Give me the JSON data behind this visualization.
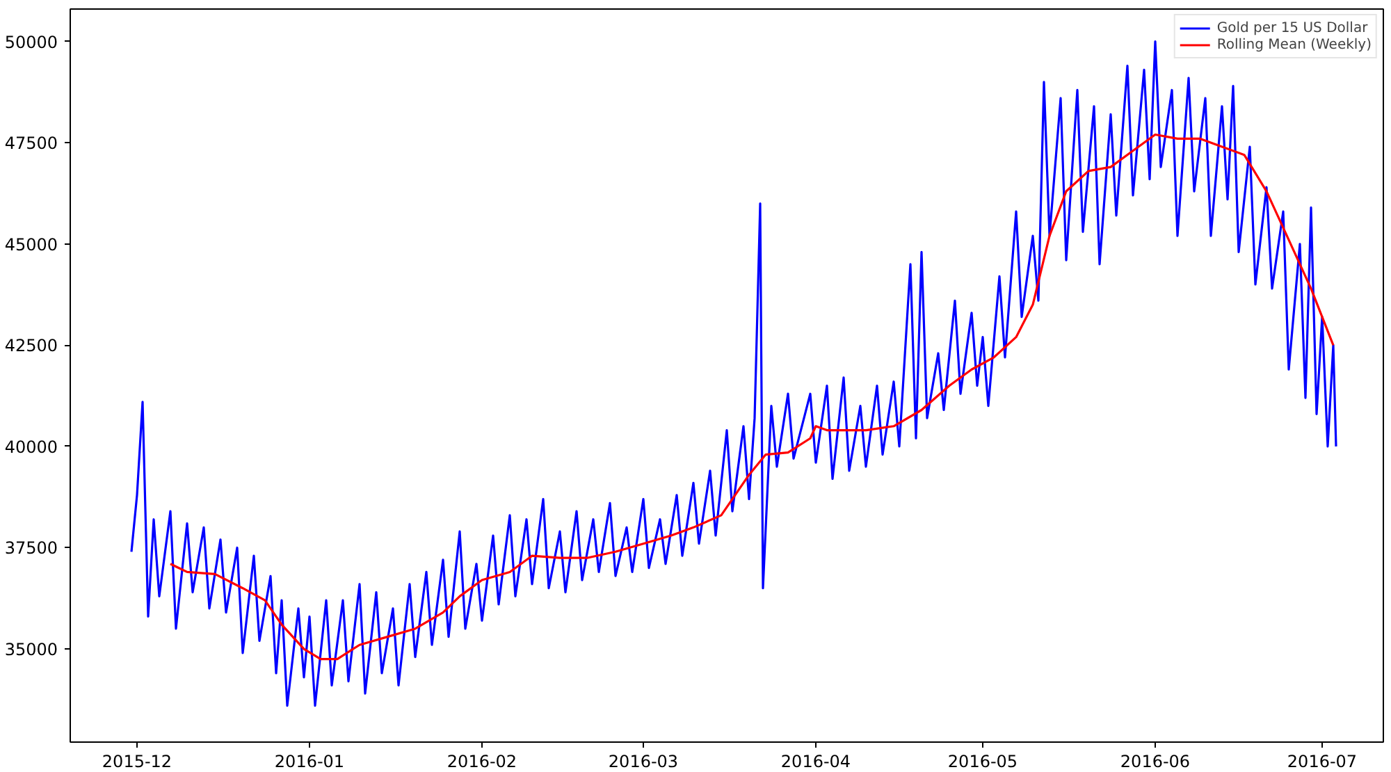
{
  "chart_data": {
    "type": "line",
    "legend": "top right",
    "grid": false,
    "line_style": "solid",
    "xlim": [
      "2015-11-19",
      "2016-07-12"
    ],
    "ylim": [
      32700,
      50800
    ],
    "xticks": [
      {
        "value": "2015-12-01",
        "label": "2015-12"
      },
      {
        "value": "2016-01-01",
        "label": "2016-01"
      },
      {
        "value": "2016-02-01",
        "label": "2016-02"
      },
      {
        "value": "2016-03-01",
        "label": "2016-03"
      },
      {
        "value": "2016-04-01",
        "label": "2016-04"
      },
      {
        "value": "2016-05-01",
        "label": "2016-05"
      },
      {
        "value": "2016-06-01",
        "label": "2016-06"
      },
      {
        "value": "2016-07-01",
        "label": "2016-07"
      }
    ],
    "yticks": [
      35000,
      37500,
      40000,
      42500,
      45000,
      47500,
      50000
    ],
    "series": [
      {
        "name": "Gold per 15 US Dollar",
        "color": "#0000ff",
        "x": [
          "2015-11-30",
          "2015-12-01",
          "2015-12-02",
          "2015-12-03",
          "2015-12-04",
          "2015-12-05",
          "2015-12-07",
          "2015-12-08",
          "2015-12-10",
          "2015-12-11",
          "2015-12-13",
          "2015-12-14",
          "2015-12-16",
          "2015-12-17",
          "2015-12-19",
          "2015-12-20",
          "2015-12-22",
          "2015-12-23",
          "2015-12-25",
          "2015-12-26",
          "2015-12-27",
          "2015-12-28",
          "2015-12-30",
          "2015-12-31",
          "2016-01-01",
          "2016-01-02",
          "2016-01-04",
          "2016-01-05",
          "2016-01-07",
          "2016-01-08",
          "2016-01-10",
          "2016-01-11",
          "2016-01-13",
          "2016-01-14",
          "2016-01-16",
          "2016-01-17",
          "2016-01-19",
          "2016-01-20",
          "2016-01-22",
          "2016-01-23",
          "2016-01-25",
          "2016-01-26",
          "2016-01-28",
          "2016-01-29",
          "2016-01-31",
          "2016-02-01",
          "2016-02-03",
          "2016-02-04",
          "2016-02-06",
          "2016-02-07",
          "2016-02-09",
          "2016-02-10",
          "2016-02-12",
          "2016-02-13",
          "2016-02-15",
          "2016-02-16",
          "2016-02-18",
          "2016-02-19",
          "2016-02-21",
          "2016-02-22",
          "2016-02-24",
          "2016-02-25",
          "2016-02-27",
          "2016-02-28",
          "2016-03-01",
          "2016-03-02",
          "2016-03-04",
          "2016-03-05",
          "2016-03-07",
          "2016-03-08",
          "2016-03-10",
          "2016-03-11",
          "2016-03-13",
          "2016-03-14",
          "2016-03-16",
          "2016-03-17",
          "2016-03-19",
          "2016-03-20",
          "2016-03-21",
          "2016-03-22",
          "2016-03-22T12:00",
          "2016-03-24",
          "2016-03-25",
          "2016-03-27",
          "2016-03-28",
          "2016-03-31",
          "2016-04-01",
          "2016-04-03",
          "2016-04-04",
          "2016-04-06",
          "2016-04-07",
          "2016-04-09",
          "2016-04-10",
          "2016-04-12",
          "2016-04-13",
          "2016-04-15",
          "2016-04-16",
          "2016-04-18",
          "2016-04-19",
          "2016-04-20",
          "2016-04-21",
          "2016-04-23",
          "2016-04-24",
          "2016-04-26",
          "2016-04-27",
          "2016-04-29",
          "2016-04-30",
          "2016-05-01",
          "2016-05-02",
          "2016-05-04",
          "2016-05-05",
          "2016-05-07",
          "2016-05-08",
          "2016-05-10",
          "2016-05-11",
          "2016-05-12",
          "2016-05-13",
          "2016-05-15",
          "2016-05-16",
          "2016-05-18",
          "2016-05-19",
          "2016-05-21",
          "2016-05-22",
          "2016-05-24",
          "2016-05-25",
          "2016-05-27",
          "2016-05-28",
          "2016-05-30",
          "2016-05-31",
          "2016-06-01",
          "2016-06-02",
          "2016-06-04",
          "2016-06-05",
          "2016-06-07",
          "2016-06-08",
          "2016-06-10",
          "2016-06-11",
          "2016-06-13",
          "2016-06-14",
          "2016-06-15",
          "2016-06-16",
          "2016-06-18",
          "2016-06-19",
          "2016-06-21",
          "2016-06-22",
          "2016-06-24",
          "2016-06-25",
          "2016-06-27",
          "2016-06-28",
          "2016-06-29",
          "2016-06-30",
          "2016-07-01",
          "2016-07-02",
          "2016-07-03",
          "2016-07-03T12:00"
        ],
        "values": [
          37400,
          38800,
          41100,
          35800,
          38200,
          36300,
          38400,
          35500,
          38100,
          36400,
          38000,
          36000,
          37700,
          35900,
          37500,
          34900,
          37300,
          35200,
          36800,
          34400,
          36200,
          33600,
          36000,
          34300,
          35800,
          33600,
          36200,
          34100,
          36200,
          34200,
          36600,
          33900,
          36400,
          34400,
          36000,
          34100,
          36600,
          34800,
          36900,
          35100,
          37200,
          35300,
          37900,
          35500,
          37100,
          35700,
          37800,
          36100,
          38300,
          36300,
          38200,
          36600,
          38700,
          36500,
          37900,
          36400,
          38400,
          36700,
          38200,
          36900,
          38600,
          36800,
          38000,
          36900,
          38700,
          37000,
          38200,
          37100,
          38800,
          37300,
          39100,
          37600,
          39400,
          37800,
          40400,
          38400,
          40500,
          38700,
          40700,
          46000,
          36500,
          41000,
          39500,
          41300,
          39700,
          41300,
          39600,
          41500,
          39200,
          41700,
          39400,
          41000,
          39500,
          41500,
          39800,
          41600,
          40000,
          44500,
          40200,
          44800,
          40700,
          42300,
          40900,
          43600,
          41300,
          43300,
          41500,
          42700,
          41000,
          44200,
          42200,
          45800,
          43200,
          45200,
          43600,
          49000,
          45200,
          48600,
          44600,
          48800,
          45300,
          48400,
          44500,
          48200,
          45700,
          49400,
          46200,
          49300,
          46600,
          50000,
          46900,
          48800,
          45200,
          49100,
          46300,
          48600,
          45200,
          48400,
          46100,
          48900,
          44800,
          47400,
          44000,
          46400,
          43900,
          45800,
          41900,
          45000,
          41200,
          45900,
          40800,
          43200,
          40000,
          42500,
          40000
        ]
      },
      {
        "name": "Rolling Mean (Weekly)",
        "color": "#ff0000",
        "x": [
          "2015-12-07",
          "2015-12-10",
          "2015-12-15",
          "2015-12-20",
          "2015-12-24",
          "2015-12-27",
          "2015-12-31",
          "2016-01-03",
          "2016-01-06",
          "2016-01-10",
          "2016-01-15",
          "2016-01-20",
          "2016-01-25",
          "2016-01-28",
          "2016-02-01",
          "2016-02-06",
          "2016-02-10",
          "2016-02-15",
          "2016-02-20",
          "2016-02-25",
          "2016-03-01",
          "2016-03-06",
          "2016-03-10",
          "2016-03-15",
          "2016-03-20",
          "2016-03-23",
          "2016-03-27",
          "2016-03-31",
          "2016-04-01",
          "2016-04-03",
          "2016-04-10",
          "2016-04-15",
          "2016-04-20",
          "2016-04-25",
          "2016-04-29",
          "2016-05-03",
          "2016-05-07",
          "2016-05-10",
          "2016-05-13",
          "2016-05-16",
          "2016-05-20",
          "2016-05-24",
          "2016-05-28",
          "2016-06-01",
          "2016-06-05",
          "2016-06-09",
          "2016-06-13",
          "2016-06-17",
          "2016-06-21",
          "2016-06-25",
          "2016-06-29",
          "2016-07-03"
        ],
        "values": [
          37100,
          36900,
          36850,
          36500,
          36200,
          35600,
          35000,
          34750,
          34750,
          35100,
          35300,
          35500,
          35900,
          36300,
          36700,
          36900,
          37300,
          37250,
          37250,
          37400,
          37600,
          37800,
          38000,
          38300,
          39300,
          39800,
          39850,
          40200,
          40500,
          40400,
          40400,
          40500,
          40900,
          41500,
          41900,
          42200,
          42700,
          43500,
          45200,
          46300,
          46800,
          46900,
          47300,
          47700,
          47600,
          47600,
          47400,
          47200,
          46300,
          45100,
          43900,
          42500
        ]
      }
    ]
  }
}
